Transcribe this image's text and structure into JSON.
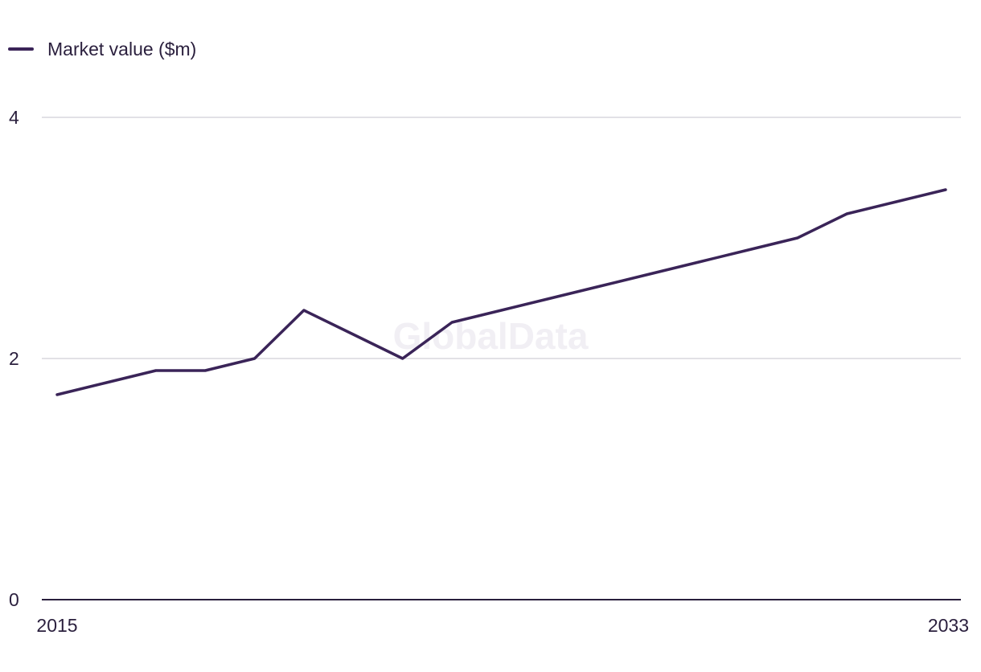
{
  "chart_data": {
    "type": "line",
    "legend_position": "top-left",
    "grid": true,
    "watermark": "GlobalData",
    "x": [
      2015,
      2016,
      2017,
      2018,
      2019,
      2020,
      2021,
      2022,
      2023,
      2024,
      2025,
      2026,
      2027,
      2028,
      2029,
      2030,
      2031,
      2032,
      2033
    ],
    "x_tick_labels": [
      "2015",
      "2033"
    ],
    "xlim": [
      2015,
      2033
    ],
    "y_ticks": [
      0,
      2,
      4
    ],
    "ylim": [
      0,
      4
    ],
    "series": [
      {
        "name": "Market value ($m)",
        "color": "#3a2458",
        "values": [
          1.7,
          1.8,
          1.9,
          1.9,
          2.0,
          2.4,
          2.2,
          2.0,
          2.3,
          2.4,
          2.5,
          2.6,
          2.7,
          2.8,
          2.9,
          3.0,
          3.2,
          3.3,
          3.4
        ]
      }
    ]
  },
  "colors": {
    "series": "#3a2458",
    "gridline": "#d9d7dd",
    "axis": "#2a1f3d",
    "text": "#2a1f3d",
    "watermark": "#f1eff4"
  }
}
